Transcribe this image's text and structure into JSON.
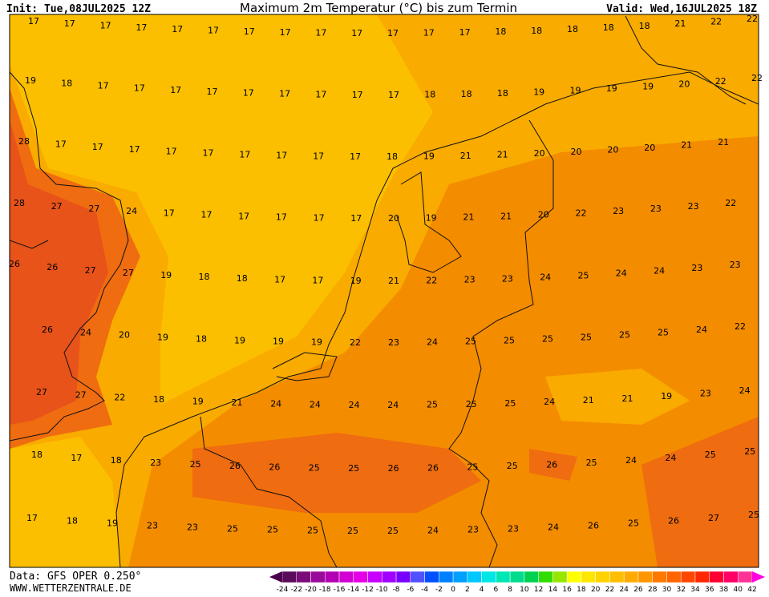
{
  "header": {
    "init": "Init: Tue,08JUL2025 12Z",
    "title": "Maximum 2m Temperatur (°C) bis zum Termin",
    "valid": "Valid: Wed,16JUL2025 18Z"
  },
  "map_labels": [
    [
      17,
      17,
      17,
      17,
      17,
      17,
      17,
      17,
      17,
      17,
      17,
      17,
      17,
      18,
      18,
      18,
      18,
      18,
      21,
      22,
      22
    ],
    [
      19,
      18,
      17,
      17,
      17,
      17,
      17,
      17,
      17,
      17,
      17,
      18,
      18,
      18,
      19,
      19,
      19,
      19,
      20,
      22,
      22
    ],
    [
      28,
      17,
      17,
      17,
      17,
      17,
      17,
      17,
      17,
      17,
      18,
      19,
      21,
      21,
      20,
      20,
      20,
      20,
      21,
      21
    ],
    [
      28,
      27,
      27,
      24,
      17,
      17,
      17,
      17,
      17,
      17,
      20,
      19,
      21,
      21,
      20,
      22,
      23,
      23,
      23,
      22
    ],
    [
      26,
      26,
      27,
      27,
      19,
      18,
      18,
      17,
      17,
      19,
      21,
      22,
      23,
      23,
      24,
      25,
      24,
      24,
      23,
      23
    ],
    [
      26,
      24,
      20,
      19,
      18,
      19,
      19,
      19,
      22,
      23,
      24,
      25,
      25,
      25,
      25,
      25,
      25,
      24,
      22
    ],
    [
      27,
      27,
      22,
      18,
      19,
      21,
      24,
      24,
      24,
      24,
      25,
      25,
      25,
      24,
      21,
      21,
      19,
      23,
      24
    ],
    [
      18,
      17,
      18,
      23,
      25,
      26,
      26,
      25,
      25,
      26,
      26,
      25,
      25,
      26,
      25,
      24,
      24,
      25,
      25
    ],
    [
      17,
      18,
      19,
      23,
      23,
      25,
      25,
      25,
      25,
      25,
      24,
      23,
      23,
      24,
      26,
      25,
      26,
      27,
      25
    ]
  ],
  "colorbar": {
    "ticks": [
      -24,
      -22,
      -20,
      -18,
      -16,
      -14,
      -12,
      -10,
      -8,
      -6,
      -4,
      -2,
      0,
      2,
      4,
      6,
      8,
      10,
      12,
      14,
      16,
      18,
      20,
      22,
      24,
      26,
      28,
      30,
      32,
      34,
      36,
      38,
      40,
      42
    ],
    "colors": [
      "#5a0a5a",
      "#7a0a7a",
      "#9a0a9a",
      "#b400b4",
      "#d200d2",
      "#e600e6",
      "#c800ff",
      "#a000ff",
      "#7800ff",
      "#5050ff",
      "#0050ff",
      "#0080ff",
      "#00a0ff",
      "#00c8ff",
      "#00e6e6",
      "#00e6b4",
      "#00dc8c",
      "#00d250",
      "#32dc00",
      "#96e600",
      "#ffff00",
      "#ffe600",
      "#ffd200",
      "#ffbe00",
      "#ffaa00",
      "#ff9600",
      "#ff7800",
      "#ff6400",
      "#ff4600",
      "#ff2800",
      "#ff0032",
      "#ff0064",
      "#ff3296"
    ]
  },
  "footer": {
    "data": "Data: GFS OPER 0.250°",
    "site": "WWW.WETTERZENTRALE.DE"
  }
}
